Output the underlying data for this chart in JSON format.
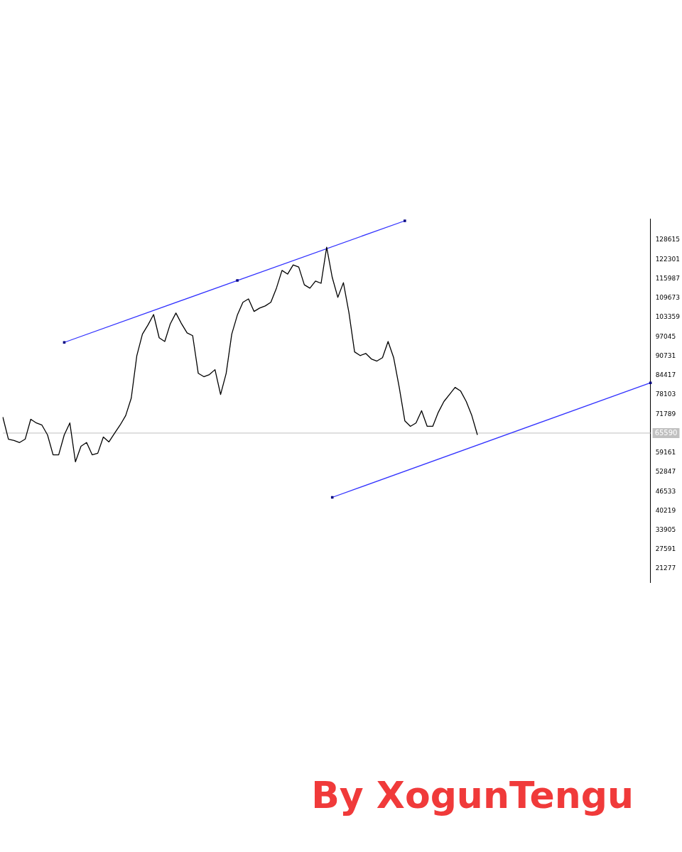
{
  "chart_data": {
    "type": "line",
    "categories": [
      null,
      null,
      null,
      null,
      null,
      null,
      null,
      null,
      null,
      null,
      null,
      null,
      null,
      null,
      null,
      null,
      null,
      null,
      null,
      null,
      null,
      null,
      null,
      null,
      null,
      null,
      null,
      null,
      null,
      null,
      null,
      null,
      null,
      null,
      null,
      null,
      null,
      null,
      null,
      null,
      null,
      null,
      null,
      null,
      null,
      null,
      null,
      null,
      null,
      null,
      null,
      null,
      null,
      null,
      null,
      null,
      null,
      null,
      null,
      null,
      null,
      null,
      null,
      null,
      null,
      null,
      null,
      null,
      null,
      null,
      null,
      null,
      null,
      null,
      null,
      null,
      null,
      null,
      null,
      null,
      null,
      null,
      null,
      null,
      null,
      null,
      null,
      null,
      null,
      null,
      null,
      null,
      null,
      null,
      null,
      null,
      null,
      null,
      null,
      null,
      null,
      null,
      null,
      null,
      null,
      null,
      null,
      null,
      null,
      null,
      null,
      null,
      null,
      null,
      null,
      null,
      null
    ],
    "series": [
      {
        "color": "#000000",
        "marker": "none",
        "values": [
          70800,
          63600,
          63200,
          62500,
          63600,
          70100,
          68900,
          68200,
          65000,
          58500,
          58500,
          65000,
          68900,
          56200,
          61300,
          62500,
          58500,
          59000,
          64300,
          62700,
          65500,
          68200,
          71300,
          77000,
          90900,
          97900,
          100900,
          104300,
          96700,
          95500,
          101300,
          104800,
          101300,
          98300,
          97400,
          85100,
          84000,
          84700,
          86300,
          78200,
          85100,
          97900,
          104100,
          108300,
          109400,
          105300,
          106400,
          107100,
          108300,
          112900,
          118700,
          117500,
          120500,
          119800,
          114000,
          112900,
          115200,
          114500,
          126300,
          116400,
          109900,
          114700,
          104800,
          92100,
          90900,
          91600,
          89800,
          89100,
          90200,
          95500,
          90200,
          80500,
          69600,
          67800,
          68900,
          72900,
          67800,
          67800,
          72400,
          75900,
          78200,
          80500,
          79300,
          75900,
          71300,
          65000,
          null,
          null,
          null,
          null,
          null,
          null,
          null,
          null,
          null,
          null,
          null,
          null,
          null,
          null,
          null,
          null,
          null,
          null,
          null,
          null,
          null,
          null,
          null,
          null,
          null,
          null,
          null,
          null,
          null,
          null,
          null
        ]
      },
      {
        "color": "#3333ff",
        "marker": "square",
        "values": [
          null,
          null,
          null,
          null,
          null,
          null,
          null,
          null,
          null,
          null,
          null,
          95200,
          null,
          null,
          null,
          null,
          null,
          null,
          null,
          null,
          null,
          null,
          null,
          null,
          null,
          null,
          null,
          null,
          null,
          null,
          null,
          null,
          null,
          null,
          null,
          null,
          null,
          null,
          null,
          null,
          null,
          null,
          115400,
          null,
          null,
          null,
          null,
          null,
          null,
          null,
          null,
          null,
          null,
          null,
          null,
          null,
          null,
          null,
          null,
          null,
          null,
          null,
          null,
          null,
          null,
          null,
          null,
          null,
          null,
          null,
          null,
          null,
          134900,
          null,
          null,
          null,
          null,
          null,
          null,
          null,
          null,
          null,
          null,
          null,
          null,
          null,
          null,
          null,
          null,
          null,
          null,
          null,
          null,
          null,
          null,
          null,
          null,
          null,
          null,
          null,
          null,
          null,
          null,
          null,
          null,
          null,
          null,
          null,
          null,
          null,
          null,
          null,
          null,
          null,
          null,
          null,
          null
        ]
      },
      {
        "color": "#3333ff",
        "marker": "square",
        "values": [
          null,
          null,
          null,
          null,
          null,
          null,
          null,
          null,
          null,
          null,
          null,
          null,
          null,
          null,
          null,
          null,
          null,
          null,
          null,
          null,
          null,
          null,
          null,
          null,
          null,
          null,
          null,
          null,
          null,
          null,
          null,
          null,
          null,
          null,
          null,
          null,
          null,
          null,
          null,
          null,
          null,
          null,
          null,
          null,
          null,
          null,
          null,
          null,
          null,
          null,
          null,
          null,
          null,
          null,
          null,
          null,
          null,
          null,
          null,
          44600,
          null,
          null,
          null,
          null,
          null,
          null,
          null,
          null,
          null,
          null,
          null,
          null,
          null,
          null,
          null,
          null,
          null,
          null,
          null,
          null,
          null,
          null,
          null,
          null,
          null,
          null,
          null,
          null,
          null,
          null,
          null,
          null,
          null,
          null,
          null,
          null,
          null,
          null,
          null,
          null,
          null,
          null,
          null,
          null,
          null,
          null,
          null,
          null,
          null,
          null,
          null,
          null,
          null,
          null,
          null,
          null,
          82000
        ]
      }
    ],
    "ylim": [
      16900,
      135500
    ],
    "yticks": [
      128615,
      122301,
      115987,
      109673,
      103359,
      97045,
      90731,
      84417,
      78103,
      71789,
      59161,
      52847,
      46533,
      40219,
      33905,
      27591,
      21277
    ],
    "tick_labels": "y",
    "grid": false,
    "legend": false,
    "ref_lines": [
      {
        "axis": "y",
        "value": 65590,
        "label": "65590",
        "color": "#c0c0c0"
      }
    ],
    "annotations": [
      "By XogunTengu"
    ]
  }
}
